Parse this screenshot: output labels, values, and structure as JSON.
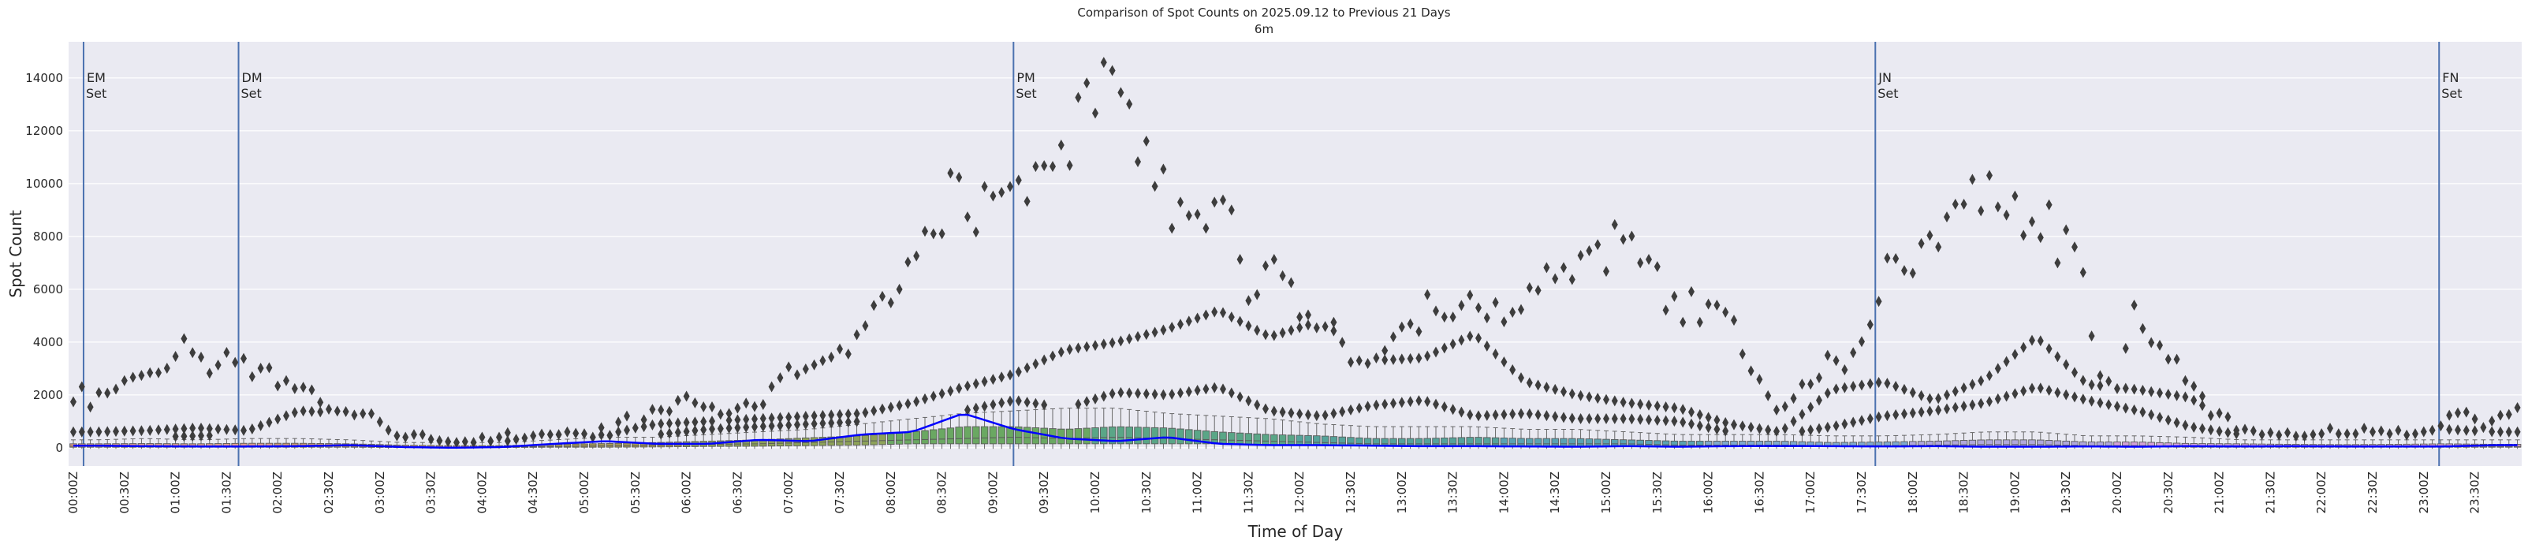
{
  "chart_data": {
    "type": "box",
    "title": "Comparison of Spot Counts on 2025.09.12 to Previous 21 Days",
    "subtitle": "6m",
    "xlabel": "Time of Day",
    "ylabel": "Spot Count",
    "ylim": [
      -690,
      15370
    ],
    "yticks": [
      0,
      2000,
      4000,
      6000,
      8000,
      10000,
      12000,
      14000
    ],
    "grid": true,
    "bin_minutes": 5,
    "tick_labels": [
      "00:00Z",
      "00:30Z",
      "01:00Z",
      "01:30Z",
      "02:00Z",
      "02:30Z",
      "03:00Z",
      "03:30Z",
      "04:00Z",
      "04:30Z",
      "05:00Z",
      "05:30Z",
      "06:00Z",
      "06:30Z",
      "07:00Z",
      "07:30Z",
      "08:00Z",
      "08:30Z",
      "09:00Z",
      "09:30Z",
      "10:00Z",
      "10:30Z",
      "11:00Z",
      "11:30Z",
      "12:00Z",
      "12:30Z",
      "13:00Z",
      "13:30Z",
      "14:00Z",
      "14:30Z",
      "15:00Z",
      "15:30Z",
      "16:00Z",
      "16:30Z",
      "17:00Z",
      "17:30Z",
      "18:00Z",
      "18:30Z",
      "19:00Z",
      "19:30Z",
      "20:00Z",
      "20:30Z",
      "21:00Z",
      "21:30Z",
      "22:00Z",
      "22:30Z",
      "23:00Z",
      "23:30Z"
    ],
    "markers": [
      {
        "label": "EM",
        "sub": "Set",
        "time": "00:06"
      },
      {
        "label": "DM",
        "sub": "Set",
        "time": "01:37"
      },
      {
        "label": "PM",
        "sub": "Set",
        "time": "09:12"
      },
      {
        "label": "JN",
        "sub": "Set",
        "time": "17:38"
      },
      {
        "label": "FN",
        "sub": "Set",
        "time": "23:09"
      }
    ],
    "colors": {
      "background": "#eaeaf2",
      "grid": "#ffffff",
      "marker_line": "#4c72b0",
      "today_line": "#0000ff",
      "outlier": "#3d3d3d",
      "box_edge": "#5a5a5a",
      "box_fill_by_2h": [
        "#dc9c8c",
        "#cf9a70",
        "#a89b58",
        "#8ea358",
        "#6aa862",
        "#5aa687",
        "#55a39a",
        "#5aa3b2",
        "#7fa9cc",
        "#b0a8da",
        "#d2a2d6",
        "#d8a2c8"
      ]
    },
    "outliers_top_per_5min": [
      1740,
      2310,
      1540,
      2090,
      2070,
      2220,
      2540,
      2670,
      2740,
      2840,
      2840,
      3010,
      3460,
      4130,
      3600,
      3430,
      2820,
      3130,
      3610,
      3230,
      3380,
      2690,
      3010,
      3030,
      2340,
      2540,
      2240,
      2290,
      2190,
      1720,
      1460,
      1390,
      1370,
      1240,
      1290,
      1290,
      980,
      670,
      450,
      400,
      500,
      500,
      320,
      270,
      230,
      200,
      230,
      200,
      400,
      250,
      400,
      570,
      320,
      370,
      450,
      520,
      500,
      500,
      600,
      550,
      530,
      400,
      760,
      470,
      970,
      1200,
      750,
      1060,
      1450,
      1430,
      1380,
      1790,
      1950,
      1700,
      1550,
      1550,
      1270,
      1300,
      1500,
      1690,
      1560,
      1640,
      2310,
      2650,
      3060,
      2760,
      2980,
      3140,
      3300,
      3430,
      3740,
      3550,
      4280,
      4620,
      5390,
      5730,
      5490,
      6000,
      7030,
      7260,
      8200,
      8100,
      8100,
      10400,
      10240,
      8740,
      8170,
      9890,
      9530,
      9670,
      9890,
      10130,
      9330,
      10650,
      10680,
      10650,
      11460,
      10690,
      13260,
      13810,
      12670,
      14590,
      14280,
      13450,
      13010,
      10830,
      11610,
      9900,
      10550,
      8310,
      9300,
      8790,
      8840,
      8310,
      9300,
      9380,
      9000,
      7130,
      5570,
      5800,
      6890,
      7130,
      6510,
      6250,
      4950,
      5030,
      4540,
      4590,
      4750,
      3990,
      3240,
      3300,
      3190,
      3400,
      3680,
      4200,
      4570,
      4690,
      4400,
      5800,
      5180,
      4950,
      4950,
      5390,
      5780,
      5300,
      4920,
      5500,
      4770,
      5130,
      5230,
      6060,
      5960,
      6820,
      6400,
      6820,
      6370,
      7280,
      7460,
      7690,
      6680,
      8450,
      7890,
      8010,
      7000,
      7130,
      6860,
      5210,
      5730,
      4750,
      5910,
      4750,
      5440,
      5400,
      5130,
      4830,
      3550,
      2910,
      2590,
      1970,
      1430,
      1560,
      1870,
      2410,
      2410,
      2650,
      3500,
      3300,
      2950,
      3600,
      4020,
      4660,
      5540,
      7180,
      7160,
      6710,
      6610,
      7730,
      8040,
      7600,
      8740,
      9220,
      9220,
      10160,
      8970,
      10310,
      9120,
      8810,
      9530,
      8040,
      8560,
      7960,
      9200,
      7000,
      8250,
      7600,
      6640,
      4230,
      2730,
      2520,
      2240,
      3760,
      5400,
      4510,
      3980,
      3880,
      3350,
      3350,
      2540,
      2330,
      1950,
      1220,
      1310,
      1170,
      660,
      700,
      640,
      500,
      570,
      480,
      570,
      440,
      440,
      500,
      530,
      740,
      530,
      530,
      530,
      740,
      600,
      640,
      530,
      660,
      480,
      530,
      610,
      660,
      830,
      1230,
      1320,
      1350,
      1090,
      770,
      1010,
      1230,
      1260,
      1520
    ],
    "outliers_mid_per_30min": [
      600,
      650,
      750,
      650,
      1400,
      1300,
      700,
      300,
      250,
      350,
      500,
      900,
      1000,
      1100,
      1200,
      1300,
      1700,
      2300,
      2800,
      3700,
      4000,
      4500,
      5200,
      4200,
      4800,
      3300,
      3400,
      4300,
      2500,
      2000,
      1700,
      1500,
      900,
      600,
      2200,
      2500,
      1800,
      2600,
      4200,
      2400,
      2200,
      1900,
      700,
      600,
      550,
      600,
      700,
      600
    ],
    "outliers_low_per_30min": [
      400,
      400,
      450,
      500,
      300,
      250,
      250,
      250,
      200,
      300,
      400,
      500,
      700,
      800,
      900,
      1000,
      1200,
      1400,
      1800,
      1500,
      2100,
      2000,
      2300,
      1400,
      1200,
      1600,
      1800,
      1200,
      1300,
      1100,
      1100,
      1000,
      600,
      500,
      800,
      1200,
      1400,
      1700,
      2300,
      1800,
      1400,
      800,
      500,
      350,
      400,
      450,
      450,
      350
    ],
    "box_per_30min": {
      "q1": [
        20,
        20,
        20,
        20,
        20,
        20,
        10,
        10,
        10,
        20,
        20,
        30,
        50,
        60,
        80,
        100,
        150,
        150,
        150,
        150,
        150,
        150,
        150,
        100,
        100,
        80,
        80,
        80,
        70,
        60,
        60,
        50,
        50,
        40,
        40,
        40,
        40,
        40,
        40,
        30,
        30,
        20,
        20,
        20,
        20,
        20,
        20,
        20
      ],
      "median": [
        60,
        60,
        60,
        70,
        70,
        60,
        40,
        30,
        30,
        50,
        70,
        100,
        130,
        150,
        200,
        250,
        300,
        350,
        400,
        350,
        400,
        350,
        300,
        250,
        200,
        150,
        150,
        150,
        150,
        150,
        150,
        100,
        100,
        100,
        80,
        80,
        100,
        120,
        120,
        80,
        80,
        60,
        50,
        50,
        50,
        50,
        60,
        50
      ],
      "q3": [
        150,
        160,
        150,
        170,
        170,
        150,
        100,
        80,
        80,
        130,
        160,
        200,
        250,
        300,
        380,
        450,
        600,
        800,
        800,
        700,
        800,
        750,
        600,
        500,
        450,
        350,
        350,
        400,
        350,
        350,
        300,
        250,
        250,
        250,
        200,
        220,
        250,
        300,
        300,
        220,
        220,
        160,
        150,
        130,
        120,
        130,
        150,
        130
      ],
      "whisker": [
        300,
        350,
        300,
        350,
        350,
        300,
        200,
        200,
        200,
        300,
        400,
        400,
        500,
        600,
        700,
        900,
        1100,
        1300,
        1400,
        1500,
        1500,
        1300,
        1200,
        1100,
        900,
        800,
        800,
        800,
        700,
        700,
        600,
        500,
        500,
        500,
        450,
        450,
        500,
        600,
        600,
        450,
        450,
        400,
        300,
        300,
        300,
        300,
        300,
        300
      ]
    },
    "today_per_30min": [
      80,
      60,
      50,
      50,
      60,
      100,
      30,
      0,
      30,
      150,
      250,
      150,
      150,
      300,
      250,
      500,
      600,
      1300,
      700,
      350,
      250,
      400,
      150,
      100,
      100,
      80,
      60,
      60,
      50,
      40,
      60,
      40,
      60,
      70,
      60,
      50,
      60,
      40,
      40,
      50,
      40,
      60,
      50,
      60,
      50,
      50,
      50,
      100
    ]
  }
}
